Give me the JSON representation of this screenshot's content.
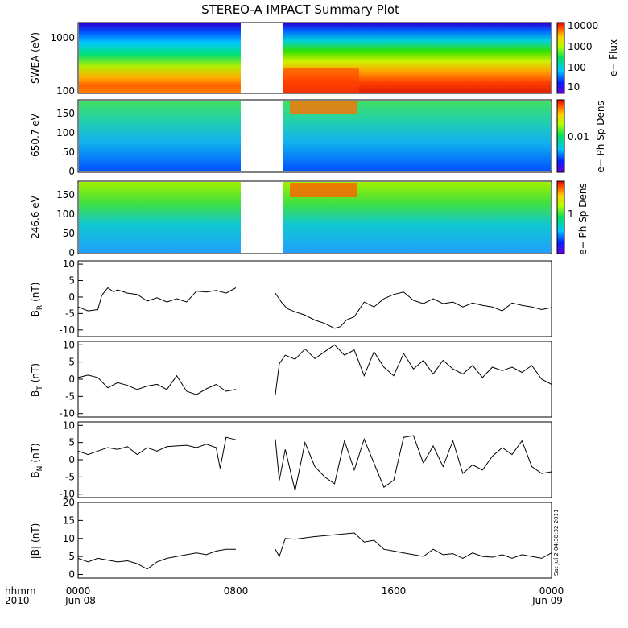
{
  "title": "STEREO-A IMPACT Summary Plot",
  "x_axis": {
    "ticks": [
      "0000",
      "0800",
      "1600",
      "0000"
    ],
    "tick_dates": [
      "Jun 08",
      "",
      "",
      "Jun 09"
    ],
    "corner_label_top": "hhmm",
    "corner_label_bottom": "2010"
  },
  "stamp": "Sat Jul  2 04:38:32 2011",
  "chart_data": [
    {
      "type": "heatmap",
      "ylabel": "SWEA (eV)",
      "yscale": "log",
      "ylim": [
        95,
        2000
      ],
      "yticks": [
        "100",
        "1000"
      ],
      "colorbar": {
        "label": "e− Flux",
        "scale": "log",
        "ticks": [
          "10000",
          "1000",
          "100",
          "10"
        ]
      },
      "data_gap_hours": [
        8.0,
        10.0
      ],
      "note_colors": {
        "low": "#2a00d4",
        "high": "#e03000"
      }
    },
    {
      "type": "heatmap",
      "ylabel": "650.7 eV",
      "ylim": [
        0,
        180
      ],
      "yticks": [
        "0",
        "50",
        "100",
        "150"
      ],
      "colorbar": {
        "label": "e− Ph Sp Dens",
        "ticks": [
          "0.01"
        ]
      },
      "data_gap_hours": [
        8.0,
        10.0
      ]
    },
    {
      "type": "heatmap",
      "ylabel": "246.6 eV",
      "ylim": [
        0,
        180
      ],
      "yticks": [
        "0",
        "50",
        "100",
        "150"
      ],
      "colorbar": {
        "label": "e− Ph Sp Dens",
        "ticks": [
          "1"
        ]
      },
      "data_gap_hours": [
        8.0,
        10.0
      ]
    },
    {
      "type": "line",
      "ylabel": "B",
      "ylabel_sub": "R",
      "ylabel_unit": "(nT)",
      "ylim": [
        -12,
        11
      ],
      "yticks": [
        -10,
        -5,
        0,
        5,
        10
      ],
      "x_hours": [
        0,
        0.5,
        1,
        1.2,
        1.5,
        1.8,
        2,
        2.5,
        3,
        3.5,
        4,
        4.5,
        5,
        5.5,
        6,
        6.5,
        7,
        7.5,
        8,
        10,
        10.3,
        10.6,
        11,
        11.5,
        12,
        12.5,
        13,
        13.3,
        13.6,
        14,
        14.5,
        15,
        15.5,
        16,
        16.5,
        17,
        17.5,
        18,
        18.5,
        19,
        19.5,
        20,
        20.5,
        21,
        21.5,
        22,
        22.5,
        23,
        23.5,
        24
      ],
      "values": [
        -3,
        -4.2,
        -3.8,
        0.5,
        2.8,
        1.6,
        2.2,
        1.2,
        0.8,
        -1.2,
        -0.2,
        -1.5,
        -0.5,
        -1.5,
        1.8,
        1.5,
        2.0,
        1.2,
        2.8,
        1.2,
        -1.5,
        -3.5,
        -4.5,
        -5.5,
        -7,
        -8,
        -9.5,
        -9,
        -7,
        -6,
        -1.5,
        -3,
        -0.5,
        0.8,
        1.5,
        -1,
        -2,
        -0.5,
        -2,
        -1.5,
        -3,
        -1.8,
        -2.5,
        -3,
        -4.2,
        -1.8,
        -2.5,
        -3,
        -3.8,
        -3.2
      ]
    },
    {
      "type": "line",
      "ylabel": "B",
      "ylabel_sub": "T",
      "ylabel_unit": "(nT)",
      "ylim": [
        -11,
        11
      ],
      "yticks": [
        -10,
        -5,
        0,
        5,
        10
      ],
      "x_hours": [
        0,
        0.5,
        1,
        1.5,
        2,
        2.5,
        3,
        3.5,
        4,
        4.5,
        5,
        5.5,
        6,
        6.5,
        7,
        7.5,
        8,
        10,
        10.2,
        10.5,
        11,
        11.5,
        12,
        12.5,
        13,
        13.5,
        14,
        14.5,
        15,
        15.5,
        16,
        16.5,
        17,
        17.5,
        18,
        18.5,
        19,
        19.5,
        20,
        20.5,
        21,
        21.5,
        22,
        22.5,
        23,
        23.5,
        24
      ],
      "values": [
        0.5,
        1.2,
        0.5,
        -2.5,
        -1,
        -1.8,
        -3,
        -2,
        -1.5,
        -3,
        1,
        -3.5,
        -4.5,
        -2.8,
        -1.5,
        -3.5,
        -3,
        -4.5,
        4.5,
        7,
        5.8,
        8.8,
        6,
        8,
        10,
        7,
        8.5,
        1,
        8,
        3.5,
        1,
        7.5,
        3,
        5.5,
        1.5,
        5.5,
        3,
        1.5,
        4,
        0.5,
        3.5,
        2.5,
        3.5,
        2,
        4,
        0,
        -1.5
      ]
    },
    {
      "type": "line",
      "ylabel": "B",
      "ylabel_sub": "N",
      "ylabel_unit": "(nT)",
      "ylim": [
        -11,
        11
      ],
      "yticks": [
        -10,
        -5,
        0,
        5,
        10
      ],
      "x_hours": [
        0,
        0.5,
        1,
        1.5,
        2,
        2.5,
        3,
        3.5,
        4,
        4.5,
        5,
        5.5,
        6,
        6.5,
        7,
        7.2,
        7.5,
        8,
        10,
        10.2,
        10.5,
        11,
        11.5,
        12,
        12.5,
        13,
        13.5,
        14,
        14.5,
        15,
        15.5,
        16,
        16.5,
        17,
        17.5,
        18,
        18.5,
        19,
        19.5,
        20,
        20.5,
        21,
        21.5,
        22,
        22.5,
        23,
        23.5,
        24
      ],
      "values": [
        2.5,
        1.5,
        2.5,
        3.5,
        3,
        3.8,
        1.5,
        3.5,
        2.5,
        3.8,
        4,
        4.2,
        3.5,
        4.5,
        3.5,
        -2.5,
        6.5,
        5.8,
        6,
        -6,
        3,
        -9,
        5,
        -2,
        -5,
        -7,
        5.5,
        -3,
        6,
        -1,
        -8,
        -6,
        6.5,
        7,
        -1,
        4,
        -2,
        5.5,
        -4,
        -1.5,
        -3,
        1,
        3.5,
        1.5,
        5.5,
        -2,
        -4,
        -3.5
      ]
    },
    {
      "type": "line",
      "ylabel": "|B|",
      "ylabel_unit": "(nT)",
      "ylim": [
        -1,
        20
      ],
      "yticks": [
        0,
        5,
        10,
        15,
        20
      ],
      "x_hours": [
        0,
        0.5,
        1,
        1.5,
        2,
        2.5,
        3,
        3.5,
        4,
        4.5,
        5,
        5.5,
        6,
        6.5,
        7,
        7.5,
        8,
        10,
        10.2,
        10.5,
        11,
        12,
        13,
        14,
        14.5,
        15,
        15.5,
        16,
        16.5,
        17,
        17.5,
        18,
        18.5,
        19,
        19.5,
        20,
        20.5,
        21,
        21.5,
        22,
        22.5,
        23,
        23.5,
        24
      ],
      "values": [
        4.5,
        3.5,
        4.5,
        4,
        3.5,
        3.8,
        3,
        1.5,
        3.5,
        4.5,
        5,
        5.5,
        6,
        5.5,
        6.5,
        7,
        7,
        7,
        5,
        10,
        9.8,
        10.5,
        11,
        11.5,
        9,
        9.5,
        7,
        6.5,
        6,
        5.5,
        5,
        7,
        5.5,
        5.8,
        4.5,
        6,
        5,
        4.8,
        5.5,
        4.5,
        5.5,
        5,
        4.5,
        6
      ]
    }
  ]
}
